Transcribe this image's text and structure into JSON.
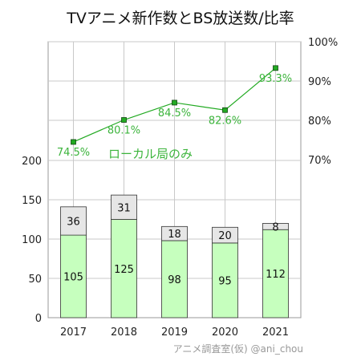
{
  "chart_data": {
    "type": "bar+line",
    "title": "TVアニメ新作数とBS放送数/比率",
    "credit": "アニメ調査室(仮) @ani_chou",
    "categories": [
      "2017",
      "2018",
      "2019",
      "2020",
      "2021"
    ],
    "series": [
      {
        "values": [
          105,
          125,
          98,
          95,
          112
        ],
        "color": "#c6ffbe",
        "kind": "bar-stack-bottom"
      },
      {
        "values": [
          36,
          31,
          18,
          20,
          8
        ],
        "color": "#e6e6e6",
        "kind": "bar-stack-top"
      },
      {
        "name": "ローカル局のみ",
        "values": [
          74.5,
          80.1,
          84.5,
          82.6,
          93.3
        ],
        "color": "#22aa22",
        "kind": "line",
        "axis": "right",
        "labels": [
          "74.5%",
          "80.1%",
          "84.5%",
          "82.6%",
          "93.3%"
        ]
      }
    ],
    "left_axis": {
      "ticks": [
        "0",
        "50",
        "100",
        "150",
        "200"
      ],
      "range": [
        0,
        200
      ]
    },
    "right_axis": {
      "ticks": [
        "70%",
        "80%",
        "90%",
        "100%"
      ],
      "range": [
        70,
        100
      ]
    },
    "grid": true
  }
}
